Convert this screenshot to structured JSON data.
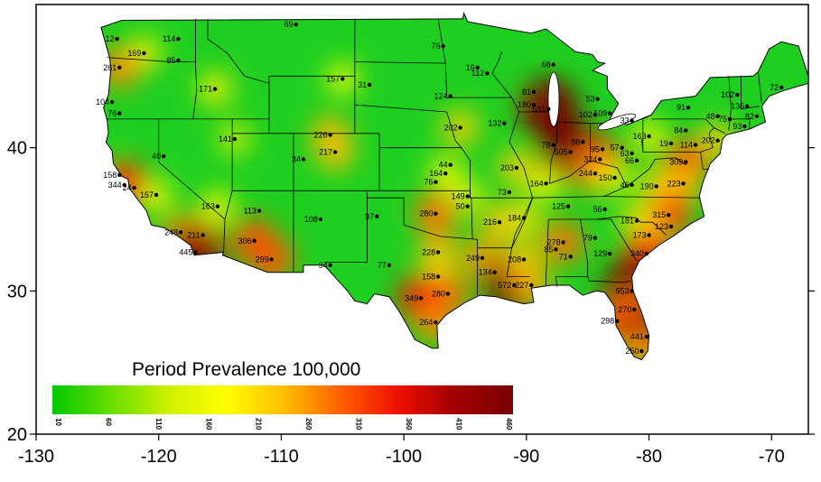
{
  "map": {
    "legend": {
      "title": "Period Prevalence 100,000",
      "ticks": [
        "10",
        "60",
        "110",
        "160",
        "210",
        "260",
        "310",
        "360",
        "410",
        "460"
      ],
      "colors": [
        "#00c800",
        "#66dd00",
        "#ccf000",
        "#ffff00",
        "#ffc000",
        "#ff6000",
        "#ee1000",
        "#a00000",
        "#7a0000"
      ],
      "range": [
        10,
        470
      ]
    },
    "x_axis": {
      "ticks": [
        "-130",
        "-120",
        "-110",
        "-100",
        "-90",
        "-80",
        "-70"
      ],
      "range": [
        -130,
        -67
      ]
    },
    "y_axis": {
      "ticks": [
        "20",
        "30",
        "40"
      ],
      "range": [
        20,
        50
      ]
    },
    "colors": {
      "land_base": "#1fcf1f",
      "border": "#000000",
      "water": "#ffffff"
    },
    "sites": [
      {
        "label": "69",
        "lon": -108.8,
        "lat": 48.6
      },
      {
        "label": "114",
        "lon": -118.4,
        "lat": 47.6
      },
      {
        "label": "12",
        "lon": -123.4,
        "lat": 47.6
      },
      {
        "label": "169",
        "lon": -121.2,
        "lat": 46.6
      },
      {
        "label": "85",
        "lon": -118.4,
        "lat": 46.1
      },
      {
        "label": "261",
        "lon": -123.2,
        "lat": 45.6
      },
      {
        "label": "171",
        "lon": -115.4,
        "lat": 44.1
      },
      {
        "label": "104",
        "lon": -123.8,
        "lat": 43.2
      },
      {
        "label": "76",
        "lon": -123.2,
        "lat": 42.4
      },
      {
        "label": "157",
        "lon": -105.0,
        "lat": 44.8
      },
      {
        "label": "31",
        "lon": -102.8,
        "lat": 44.4
      },
      {
        "label": "76",
        "lon": -96.8,
        "lat": 47.1
      },
      {
        "label": "16",
        "lon": -94.0,
        "lat": 45.6
      },
      {
        "label": "112",
        "lon": -93.2,
        "lat": 45.2
      },
      {
        "label": "124",
        "lon": -96.2,
        "lat": 43.6
      },
      {
        "label": "68",
        "lon": -87.8,
        "lat": 45.8
      },
      {
        "label": "81",
        "lon": -89.4,
        "lat": 43.9
      },
      {
        "label": "180",
        "lon": -89.4,
        "lat": 43.0
      },
      {
        "label": "531",
        "lon": -88.2,
        "lat": 42.7
      },
      {
        "label": "53",
        "lon": -84.2,
        "lat": 43.4
      },
      {
        "label": "102",
        "lon": -84.4,
        "lat": 42.3
      },
      {
        "label": "109",
        "lon": -83.2,
        "lat": 42.4
      },
      {
        "label": "33",
        "lon": -81.4,
        "lat": 41.9
      },
      {
        "label": "91",
        "lon": -76.8,
        "lat": 42.8
      },
      {
        "label": "72",
        "lon": -69.2,
        "lat": 44.2
      },
      {
        "label": "102",
        "lon": -72.8,
        "lat": 43.7
      },
      {
        "label": "136",
        "lon": -72.0,
        "lat": 42.9
      },
      {
        "label": "48",
        "lon": -74.4,
        "lat": 42.2
      },
      {
        "label": "75",
        "lon": -73.4,
        "lat": 42.0
      },
      {
        "label": "82",
        "lon": -71.2,
        "lat": 42.2
      },
      {
        "label": "93",
        "lon": -72.2,
        "lat": 41.5
      },
      {
        "label": "84",
        "lon": -77.0,
        "lat": 41.2
      },
      {
        "label": "202",
        "lon": -74.4,
        "lat": 40.5
      },
      {
        "label": "163",
        "lon": -80.0,
        "lat": 40.8
      },
      {
        "label": "141",
        "lon": -113.8,
        "lat": 40.6
      },
      {
        "label": "226",
        "lon": -106.0,
        "lat": 40.9
      },
      {
        "label": "217",
        "lon": -105.6,
        "lat": 39.7
      },
      {
        "label": "34",
        "lon": -108.2,
        "lat": 39.2
      },
      {
        "label": "40",
        "lon": -119.6,
        "lat": 39.4
      },
      {
        "label": "202",
        "lon": -95.4,
        "lat": 41.4
      },
      {
        "label": "132",
        "lon": -91.8,
        "lat": 41.7
      },
      {
        "label": "78",
        "lon": -87.8,
        "lat": 40.2
      },
      {
        "label": "88",
        "lon": -85.4,
        "lat": 40.4
      },
      {
        "label": "505",
        "lon": -86.4,
        "lat": 39.7
      },
      {
        "label": "95",
        "lon": -83.8,
        "lat": 39.9
      },
      {
        "label": "57",
        "lon": -82.2,
        "lat": 40.0
      },
      {
        "label": "63",
        "lon": -81.4,
        "lat": 39.6
      },
      {
        "label": "19",
        "lon": -78.2,
        "lat": 40.3
      },
      {
        "label": "114",
        "lon": -76.2,
        "lat": 40.2
      },
      {
        "label": "324",
        "lon": -84.0,
        "lat": 39.2
      },
      {
        "label": "66",
        "lon": -81.0,
        "lat": 39.1
      },
      {
        "label": "309",
        "lon": -77.0,
        "lat": 39.0
      },
      {
        "label": "44",
        "lon": -96.2,
        "lat": 38.8
      },
      {
        "label": "164",
        "lon": -96.6,
        "lat": 38.2
      },
      {
        "label": "76",
        "lon": -97.4,
        "lat": 37.6
      },
      {
        "label": "203",
        "lon": -90.8,
        "lat": 38.6
      },
      {
        "label": "244",
        "lon": -84.4,
        "lat": 38.2
      },
      {
        "label": "150",
        "lon": -82.8,
        "lat": 37.9
      },
      {
        "label": "46",
        "lon": -81.4,
        "lat": 37.4
      },
      {
        "label": "190",
        "lon": -79.4,
        "lat": 37.3
      },
      {
        "label": "223",
        "lon": -77.2,
        "lat": 37.5
      },
      {
        "label": "164",
        "lon": -88.4,
        "lat": 37.5
      },
      {
        "label": "73",
        "lon": -91.4,
        "lat": 36.9
      },
      {
        "label": "149",
        "lon": -94.8,
        "lat": 36.6
      },
      {
        "label": "50",
        "lon": -94.8,
        "lat": 35.9
      },
      {
        "label": "158",
        "lon": -123.2,
        "lat": 38.1
      },
      {
        "label": "344",
        "lon": -122.8,
        "lat": 37.4
      },
      {
        "label": "24",
        "lon": -122.0,
        "lat": 37.2
      },
      {
        "label": "157",
        "lon": -120.2,
        "lat": 36.7
      },
      {
        "label": "163",
        "lon": -115.2,
        "lat": 35.9
      },
      {
        "label": "113",
        "lon": -111.8,
        "lat": 35.6
      },
      {
        "label": "108",
        "lon": -106.8,
        "lat": 35.0
      },
      {
        "label": "97",
        "lon": -102.2,
        "lat": 35.2
      },
      {
        "label": "280",
        "lon": -97.4,
        "lat": 35.4
      },
      {
        "label": "216",
        "lon": -92.2,
        "lat": 34.8
      },
      {
        "label": "184",
        "lon": -90.2,
        "lat": 35.1
      },
      {
        "label": "125",
        "lon": -86.6,
        "lat": 35.9
      },
      {
        "label": "56",
        "lon": -83.6,
        "lat": 35.7
      },
      {
        "label": "315",
        "lon": -78.4,
        "lat": 35.3
      },
      {
        "label": "123",
        "lon": -78.2,
        "lat": 34.5
      },
      {
        "label": "248",
        "lon": -118.2,
        "lat": 34.1
      },
      {
        "label": "211",
        "lon": -116.4,
        "lat": 33.9
      },
      {
        "label": "445",
        "lon": -117.0,
        "lat": 32.7
      },
      {
        "label": "306",
        "lon": -112.2,
        "lat": 33.5
      },
      {
        "label": "299",
        "lon": -110.8,
        "lat": 32.2
      },
      {
        "label": "94",
        "lon": -106.0,
        "lat": 31.8
      },
      {
        "label": "77",
        "lon": -101.2,
        "lat": 31.8
      },
      {
        "label": "228",
        "lon": -97.2,
        "lat": 32.7
      },
      {
        "label": "158",
        "lon": -97.2,
        "lat": 31.0
      },
      {
        "label": "249",
        "lon": -93.6,
        "lat": 32.3
      },
      {
        "label": "280",
        "lon": -96.4,
        "lat": 29.8
      },
      {
        "label": "349",
        "lon": -98.6,
        "lat": 29.5
      },
      {
        "label": "264",
        "lon": -97.4,
        "lat": 27.8
      },
      {
        "label": "134",
        "lon": -92.6,
        "lat": 31.3
      },
      {
        "label": "572",
        "lon": -91.0,
        "lat": 30.4
      },
      {
        "label": "208",
        "lon": -90.2,
        "lat": 32.2
      },
      {
        "label": "227",
        "lon": -89.6,
        "lat": 30.4
      },
      {
        "label": "278",
        "lon": -87.0,
        "lat": 33.4
      },
      {
        "label": "85",
        "lon": -87.6,
        "lat": 32.9
      },
      {
        "label": "71",
        "lon": -86.4,
        "lat": 32.4
      },
      {
        "label": "79",
        "lon": -84.4,
        "lat": 33.7
      },
      {
        "label": "129",
        "lon": -83.2,
        "lat": 32.6
      },
      {
        "label": "181",
        "lon": -81.0,
        "lat": 34.9
      },
      {
        "label": "173",
        "lon": -80.0,
        "lat": 33.9
      },
      {
        "label": "340",
        "lon": -80.2,
        "lat": 32.6
      },
      {
        "label": "953",
        "lon": -81.4,
        "lat": 30.0
      },
      {
        "label": "270",
        "lon": -81.2,
        "lat": 28.7
      },
      {
        "label": "298",
        "lon": -82.6,
        "lat": 27.9
      },
      {
        "label": "441",
        "lon": -80.2,
        "lat": 26.8
      },
      {
        "label": "250",
        "lon": -80.6,
        "lat": 25.8
      }
    ]
  }
}
